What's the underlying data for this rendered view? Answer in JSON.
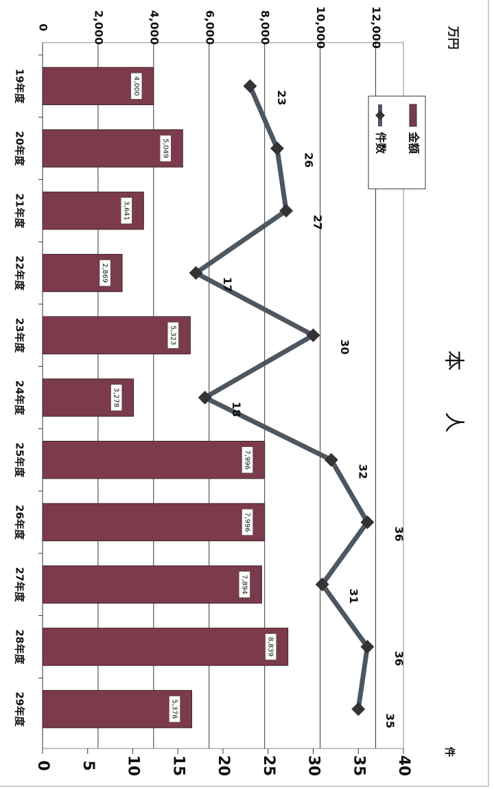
{
  "chart_data": {
    "type": "bar",
    "title": "本人",
    "y_label": "万円",
    "y2_label": "件",
    "categories": [
      "19年度",
      "20年度",
      "21年度",
      "22年度",
      "23年度",
      "24年度",
      "25年度",
      "26年度",
      "27年度",
      "28年度",
      "29年度"
    ],
    "series": [
      {
        "name": "金額",
        "type": "bar",
        "color": "#7b3b4b",
        "values": [
          4000,
          5049,
          3641,
          2869,
          5323,
          3278,
          7996,
          7996,
          7894,
          8839,
          5376
        ],
        "value_labels": [
          "4,000",
          "5,049",
          "3,641",
          "2,869",
          "5,323",
          "3,278",
          "7,996",
          "7,996",
          "7,894",
          "8,839",
          "5,376"
        ]
      },
      {
        "name": "件数",
        "type": "line",
        "axis": "y2",
        "color": "#4d5761",
        "values": [
          23,
          26,
          27,
          17,
          30,
          18,
          32,
          36,
          31,
          36,
          35
        ]
      }
    ],
    "ylim": [
      0,
      13000
    ],
    "yticks": [
      0,
      {
        "value": 2000,
        "label": "2,000"
      },
      {
        "value": 4000,
        "label": "4,000"
      },
      {
        "value": 6000,
        "label": "6,000"
      },
      {
        "value": 8000,
        "label": "8,000"
      },
      {
        "value": 10000,
        "label": "10,000"
      },
      {
        "value": 12000,
        "label": "12,000"
      }
    ],
    "y2lim": [
      0,
      40
    ],
    "y2ticks": [
      0,
      5,
      10,
      15,
      20,
      25,
      30,
      35,
      40
    ],
    "grid": true,
    "legend": "upper left"
  }
}
